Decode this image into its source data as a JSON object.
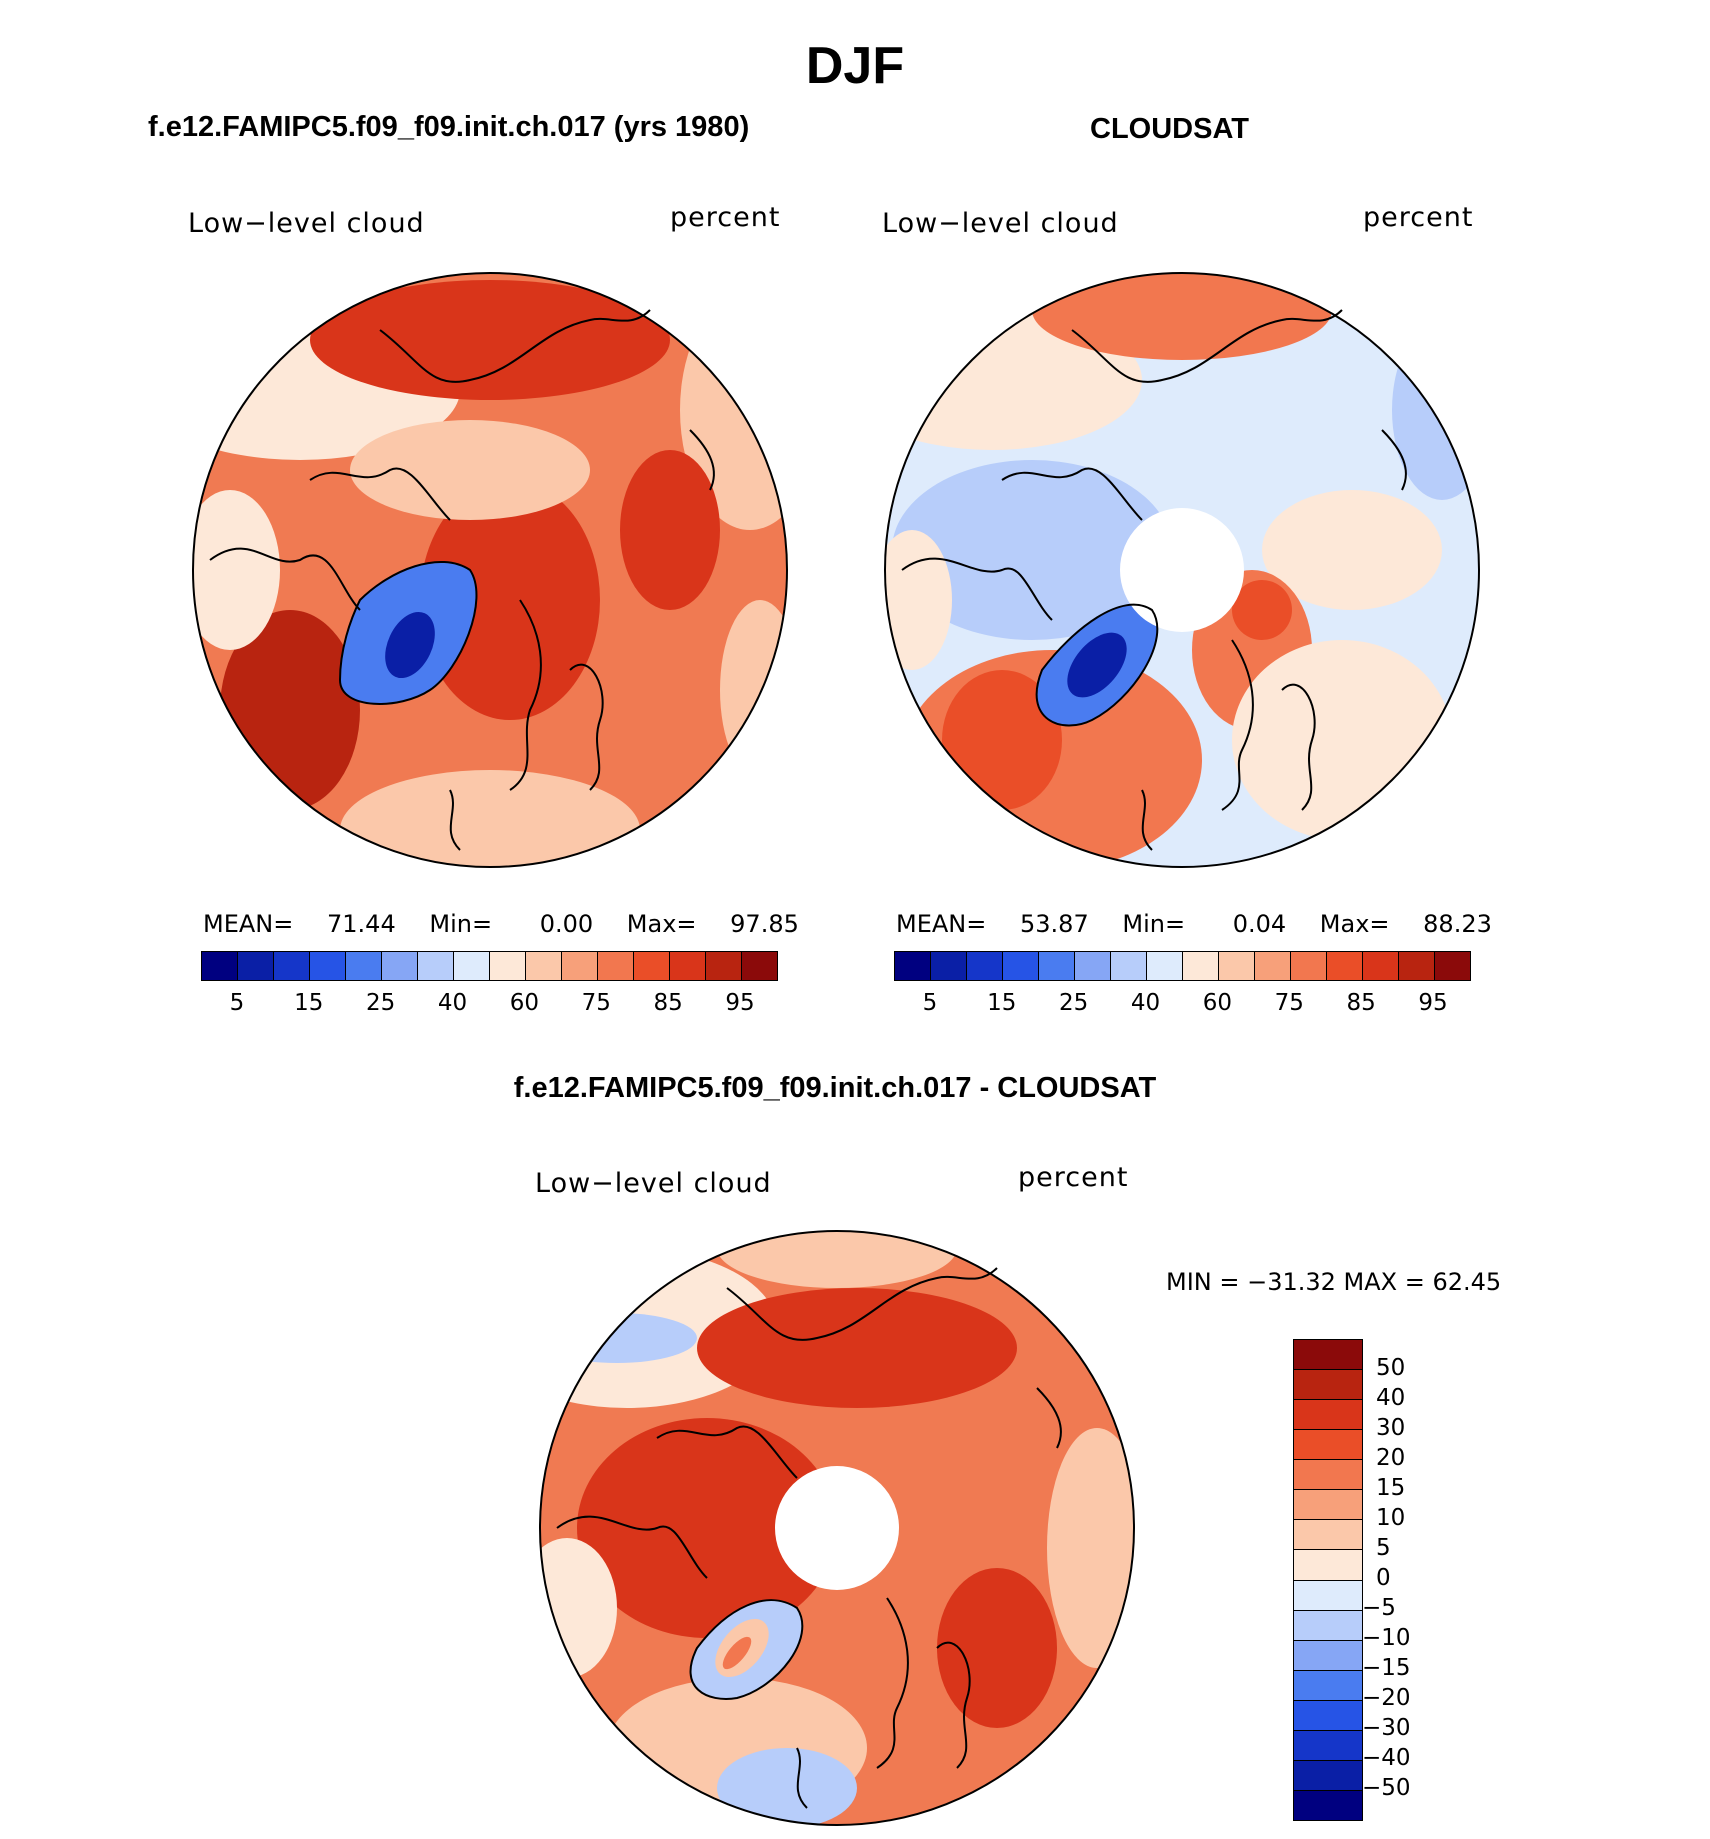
{
  "title": "DJF",
  "panels": [
    {
      "id": "model",
      "title": "f.e12.FAMIPC5.f09_f09.init.ch.017 (yrs 1980)",
      "variable": "Low−level cloud",
      "units": "percent",
      "stats": {
        "mean_label": "MEAN=",
        "mean": "71.44",
        "min_label": "Min=",
        "min": "0.00",
        "max_label": "Max=",
        "max": "97.85"
      }
    },
    {
      "id": "obs",
      "title": "CLOUDSAT",
      "variable": "Low−level cloud",
      "units": "percent",
      "stats": {
        "mean_label": "MEAN=",
        "mean": "53.87",
        "min_label": "Min=",
        "min": "0.04",
        "max_label": "Max=",
        "max": "88.23"
      }
    },
    {
      "id": "diff",
      "title": "f.e12.FAMIPC5.f09_f09.init.ch.017 - CLOUDSAT",
      "variable": "Low−level cloud",
      "units": "percent",
      "stats_text": "MIN = −31.32 MAX =   62.45"
    }
  ],
  "colorbar_abs": {
    "colors": [
      "#000080",
      "#0a1fa6",
      "#1536c9",
      "#2654e6",
      "#4a7cf0",
      "#86a6f5",
      "#b7cdfa",
      "#deebfc",
      "#fde8d8",
      "#fbc8aa",
      "#f7a07a",
      "#f2774f",
      "#ea4e28",
      "#d9351a",
      "#b82410",
      "#8b0a0a"
    ],
    "tick_labels": [
      "5",
      "15",
      "25",
      "40",
      "60",
      "75",
      "85",
      "95"
    ]
  },
  "colorbar_diff": {
    "colors_top_to_bottom": [
      "#8b0a0a",
      "#b82410",
      "#d9351a",
      "#ea4e28",
      "#f2774f",
      "#f7a07a",
      "#fbc8aa",
      "#fde8d8",
      "#deebfc",
      "#b7cdfa",
      "#86a6f5",
      "#4a7cf0",
      "#2654e6",
      "#1536c9",
      "#0a1fa6",
      "#000080"
    ],
    "tick_labels": [
      "50",
      "40",
      "30",
      "20",
      "15",
      "10",
      "5",
      "0",
      "−5",
      "−10",
      "−15",
      "−20",
      "−30",
      "−40",
      "−50"
    ]
  },
  "map_colors": {
    "model_base": "#f07a52",
    "model_dark": "#d9351a",
    "model_deep": "#b82410",
    "model_light": "#fbc8aa",
    "model_pale": "#fde8d8",
    "obs_base": "#deebfc",
    "obs_blue": "#b7cdfa",
    "obs_red": "#f2774f",
    "obs_dark": "#ea4e28",
    "obs_pale": "#fde8d8",
    "greenland_deep": "#0a1fa6",
    "greenland_mid": "#4a7cf0",
    "coast": "#000000"
  }
}
